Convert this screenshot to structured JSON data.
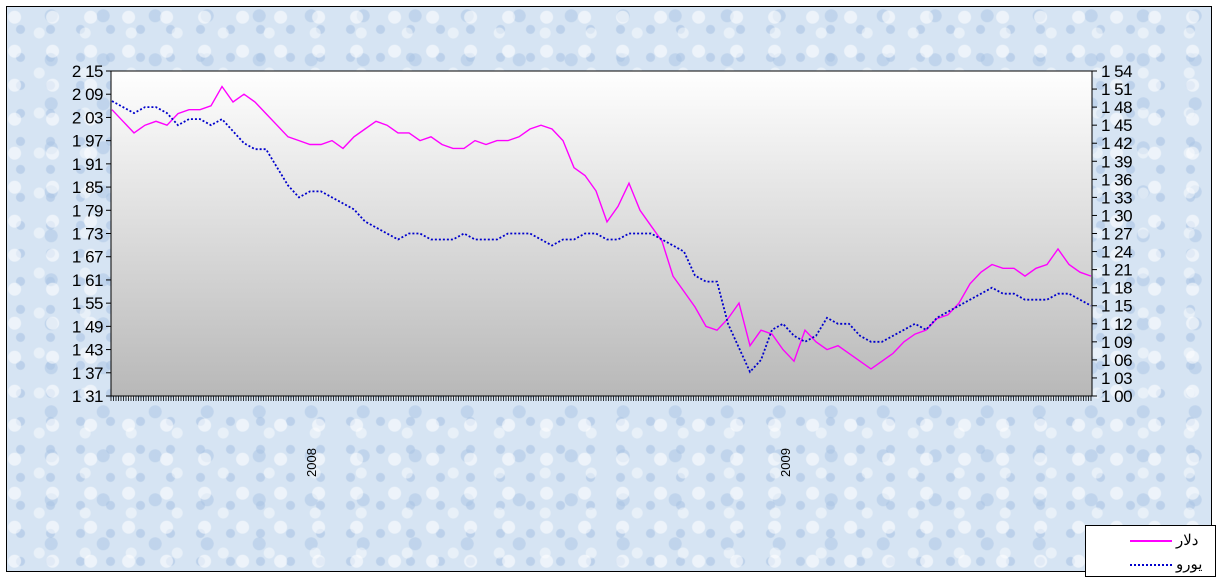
{
  "chart_data": {
    "type": "line",
    "x_labels": [
      "2008",
      "2009"
    ],
    "left_axis": {
      "ticks": [
        "2 15",
        "2 09",
        "2 03",
        "1 97",
        "1 91",
        "1 85",
        "1 79",
        "1 73",
        "1 67",
        "1 61",
        "1 55",
        "1 49",
        "1 43",
        "1 37",
        "1 31"
      ],
      "range": [
        1.31,
        2.15
      ]
    },
    "right_axis": {
      "ticks": [
        "1 54",
        "1 51",
        "1 48",
        "1 45",
        "1 42",
        "1 39",
        "1 36",
        "1 33",
        "1 30",
        "1 27",
        "1 24",
        "1 21",
        "1 18",
        "1 15",
        "1 12",
        "1 09",
        "1 06",
        "1 03",
        "1 00"
      ],
      "range": [
        1.0,
        1.54
      ]
    },
    "legend": {
      "placement": "bottom-right"
    },
    "series": [
      {
        "name": "دلار",
        "axis": "left",
        "color": "#ff00ff",
        "style": "solid",
        "values": [
          2.05,
          2.02,
          1.99,
          2.01,
          2.02,
          2.01,
          2.04,
          2.05,
          2.05,
          2.06,
          2.11,
          2.07,
          2.09,
          2.07,
          2.04,
          2.01,
          1.98,
          1.97,
          1.96,
          1.96,
          1.97,
          1.95,
          1.98,
          2.0,
          2.02,
          2.01,
          1.99,
          1.99,
          1.97,
          1.98,
          1.96,
          1.95,
          1.95,
          1.97,
          1.96,
          1.97,
          1.97,
          1.98,
          2.0,
          2.01,
          2.0,
          1.97,
          1.9,
          1.88,
          1.84,
          1.76,
          1.8,
          1.86,
          1.79,
          1.75,
          1.71,
          1.62,
          1.58,
          1.54,
          1.49,
          1.48,
          1.51,
          1.55,
          1.44,
          1.48,
          1.47,
          1.43,
          1.4,
          1.48,
          1.45,
          1.43,
          1.44,
          1.42,
          1.4,
          1.38,
          1.4,
          1.42,
          1.45,
          1.47,
          1.48,
          1.51,
          1.52,
          1.55,
          1.6,
          1.63,
          1.65,
          1.64,
          1.64,
          1.62,
          1.64,
          1.65,
          1.69,
          1.65,
          1.63,
          1.62
        ]
      },
      {
        "name": "یورو",
        "axis": "right",
        "color": "#0000cc",
        "style": "dotted",
        "values": [
          1.49,
          1.48,
          1.47,
          1.48,
          1.48,
          1.47,
          1.45,
          1.46,
          1.46,
          1.45,
          1.46,
          1.44,
          1.42,
          1.41,
          1.41,
          1.38,
          1.35,
          1.33,
          1.34,
          1.34,
          1.33,
          1.32,
          1.31,
          1.29,
          1.28,
          1.27,
          1.26,
          1.27,
          1.27,
          1.26,
          1.26,
          1.26,
          1.27,
          1.26,
          1.26,
          1.26,
          1.27,
          1.27,
          1.27,
          1.26,
          1.25,
          1.26,
          1.26,
          1.27,
          1.27,
          1.26,
          1.26,
          1.27,
          1.27,
          1.27,
          1.26,
          1.25,
          1.24,
          1.2,
          1.19,
          1.19,
          1.12,
          1.08,
          1.04,
          1.06,
          1.11,
          1.12,
          1.1,
          1.09,
          1.1,
          1.13,
          1.12,
          1.12,
          1.1,
          1.09,
          1.09,
          1.1,
          1.11,
          1.12,
          1.11,
          1.13,
          1.14,
          1.15,
          1.16,
          1.17,
          1.18,
          1.17,
          1.17,
          1.16,
          1.16,
          1.16,
          1.17,
          1.17,
          1.16,
          1.15
        ]
      }
    ]
  }
}
